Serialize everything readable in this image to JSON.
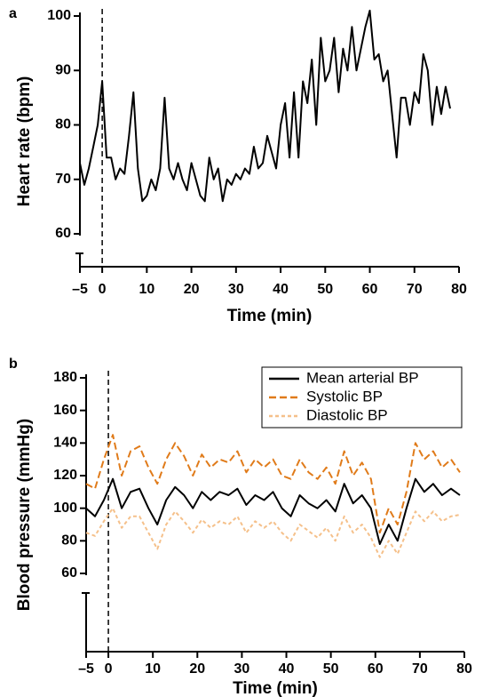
{
  "chart_data": [
    {
      "type": "line",
      "panel_label": "a",
      "y_label": "Heart rate (bpm)",
      "x_label": "Time (min)",
      "color": "#000000",
      "x": [
        -5,
        -4,
        -3,
        -2,
        -1,
        0,
        1,
        2,
        3,
        4,
        5,
        6,
        7,
        8,
        9,
        10,
        11,
        12,
        13,
        14,
        15,
        16,
        17,
        18,
        19,
        20,
        21,
        22,
        23,
        24,
        25,
        26,
        27,
        28,
        29,
        30,
        31,
        32,
        33,
        34,
        35,
        36,
        37,
        38,
        39,
        40,
        41,
        42,
        43,
        44,
        45,
        46,
        47,
        48,
        49,
        50,
        51,
        52,
        53,
        54,
        55,
        56,
        57,
        58,
        59,
        60,
        61,
        62,
        63,
        64,
        65,
        66,
        67,
        68,
        69,
        70,
        71,
        72,
        73,
        74,
        75,
        76,
        77,
        78
      ],
      "values": [
        73,
        69,
        72,
        76,
        80,
        88,
        74,
        74,
        70,
        72,
        71,
        78,
        86,
        72,
        66,
        67,
        70,
        68,
        72,
        85,
        72,
        70,
        73,
        70,
        68,
        73,
        70,
        67,
        66,
        74,
        70,
        72,
        66,
        70,
        69,
        71,
        70,
        72,
        71,
        76,
        72,
        73,
        78,
        75,
        72,
        80,
        84,
        74,
        86,
        74,
        88,
        84,
        92,
        80,
        96,
        88,
        90,
        96,
        86,
        94,
        90,
        98,
        90,
        94,
        98,
        101,
        92,
        93,
        88,
        90,
        82,
        74,
        85,
        85,
        80,
        86,
        84,
        93,
        90,
        80,
        87,
        82,
        87,
        83
      ],
      "vline": 0,
      "xlim": [
        -5,
        80
      ],
      "xticks": [
        {
          "value": -5,
          "label": "–5"
        },
        0,
        10,
        20,
        30,
        40,
        50,
        60,
        70,
        80
      ],
      "ylim": [
        60,
        100
      ],
      "yticks": [
        60,
        70,
        80,
        90,
        100
      ]
    },
    {
      "type": "line",
      "panel_label": "b",
      "y_label": "Blood pressure (mmHg)",
      "x_label": "Time (min)",
      "legend": "upper right",
      "x": [
        -5,
        -3,
        -1,
        1,
        3,
        5,
        7,
        9,
        11,
        13,
        15,
        17,
        19,
        21,
        23,
        25,
        27,
        29,
        31,
        33,
        35,
        37,
        39,
        41,
        43,
        45,
        47,
        49,
        51,
        53,
        55,
        57,
        59,
        61,
        63,
        65,
        67,
        69,
        71,
        73,
        75,
        77,
        79
      ],
      "series": [
        {
          "name": "Mean arterial BP",
          "color": "#000000",
          "linestyle": "solid",
          "values": [
            100,
            95,
            105,
            118,
            100,
            110,
            112,
            100,
            90,
            105,
            113,
            108,
            100,
            110,
            105,
            110,
            108,
            112,
            102,
            108,
            105,
            110,
            100,
            95,
            108,
            103,
            100,
            105,
            98,
            115,
            103,
            108,
            100,
            78,
            90,
            80,
            100,
            118,
            110,
            115,
            108,
            112,
            108
          ]
        },
        {
          "name": "Systolic BP",
          "color": "#e07b1a",
          "linestyle": "dashed",
          "values": [
            115,
            112,
            130,
            145,
            120,
            135,
            138,
            125,
            115,
            130,
            140,
            132,
            120,
            133,
            125,
            130,
            128,
            135,
            122,
            130,
            125,
            130,
            120,
            118,
            130,
            122,
            118,
            125,
            115,
            135,
            120,
            128,
            118,
            85,
            100,
            90,
            110,
            140,
            130,
            135,
            125,
            130,
            122
          ]
        },
        {
          "name": "Diastolic BP",
          "color": "#f5c08a",
          "linestyle": "dotted",
          "values": [
            85,
            83,
            92,
            100,
            88,
            95,
            95,
            85,
            75,
            90,
            98,
            92,
            85,
            93,
            88,
            92,
            90,
            95,
            85,
            92,
            88,
            92,
            85,
            80,
            90,
            86,
            82,
            88,
            80,
            95,
            85,
            90,
            82,
            70,
            80,
            72,
            85,
            98,
            92,
            98,
            92,
            95,
            96
          ]
        }
      ],
      "vline": 0,
      "xlim": [
        -5,
        80
      ],
      "xticks": [
        {
          "value": -5,
          "label": "–5"
        },
        0,
        10,
        20,
        30,
        40,
        50,
        60,
        70,
        80
      ],
      "ylim": [
        60,
        180
      ],
      "yticks": [
        60,
        80,
        100,
        120,
        140,
        160,
        180
      ]
    }
  ]
}
